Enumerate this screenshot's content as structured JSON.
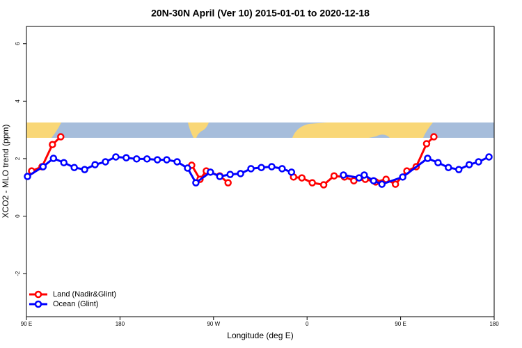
{
  "chart_data": {
    "type": "line",
    "title": "20N-30N April (Ver 10)   2015-01-01 to 2020-12-18",
    "x_label": "Longitude (deg E)",
    "y_label": "XCO2 - MLO trend (ppm)",
    "xlim": [
      90,
      540
    ],
    "ylim": [
      -3.5,
      6.6
    ],
    "xticks": [
      {
        "value": 90,
        "label": "90 E"
      },
      180,
      {
        "value": 270,
        "label": "90 W"
      },
      {
        "value": 360,
        "label": "0"
      },
      {
        "value": 450,
        "label": "90 E"
      },
      {
        "value": 540,
        "label": "180"
      }
    ],
    "yticks": [
      -2,
      0,
      2,
      4,
      6
    ],
    "legend": "bottomleft",
    "series": [
      {
        "name": "Land (Nadir&Glint)",
        "color": "#ff0000",
        "x": [
          95,
          105,
          115,
          123,
          null,
          249,
          257,
          263,
          276,
          284,
          null,
          347,
          355,
          365,
          376,
          386,
          396,
          405,
          416,
          426,
          436,
          445,
          456,
          465,
          475,
          482
        ],
        "values": [
          1.57,
          1.72,
          2.49,
          2.76,
          null,
          1.77,
          1.28,
          1.57,
          1.4,
          1.16,
          null,
          1.36,
          1.33,
          1.16,
          1.09,
          1.4,
          1.36,
          1.23,
          1.28,
          1.19,
          1.28,
          1.11,
          1.57,
          1.72,
          2.52,
          2.76
        ]
      },
      {
        "name": "Ocean (Glint)",
        "color": "#0000ff",
        "x": [
          91,
          106,
          116,
          126,
          136,
          146,
          156,
          166,
          176,
          186,
          196,
          206,
          216,
          225,
          235,
          245,
          253,
          267,
          276,
          286,
          296,
          306,
          316,
          326,
          336,
          345,
          null,
          395,
          410,
          415,
          424,
          432,
          452,
          476,
          486,
          496,
          506,
          516,
          525,
          535
        ],
        "values": [
          1.38,
          1.72,
          2.01,
          1.86,
          1.69,
          1.62,
          1.79,
          1.89,
          2.06,
          2.03,
          1.99,
          1.99,
          1.96,
          1.96,
          1.89,
          1.67,
          1.16,
          1.53,
          1.38,
          1.45,
          1.48,
          1.65,
          1.69,
          1.72,
          1.65,
          1.53,
          null,
          1.43,
          1.33,
          1.43,
          1.23,
          1.11,
          1.36,
          2.01,
          1.86,
          1.69,
          1.62,
          1.79,
          1.89,
          2.06
        ]
      }
    ]
  }
}
